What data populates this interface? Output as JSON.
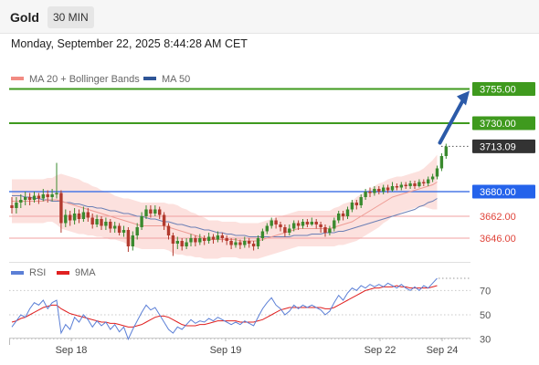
{
  "header": {
    "title": "Gold",
    "timeframe": "30 MIN"
  },
  "timestamp": "Monday, September 22, 2025 8:44:28 AM CET",
  "chart_data": [
    {
      "type": "line",
      "title": "",
      "legend": [
        {
          "name": "MA 20 + Bollinger Bands",
          "color": "#f28b82"
        },
        {
          "name": "MA 50",
          "color": "#2f5597"
        }
      ],
      "legend_placement": "top-left",
      "y_range": [
        3620,
        3770
      ],
      "x_tick_labels": [
        "Sep 18",
        "Sep 19",
        "Sep 22",
        "Sep 24"
      ],
      "candles": {
        "up_color": "#3a8a2e",
        "down_color": "#b23a2e",
        "values": [
          [
            3670,
            3668,
            3676,
            3664
          ],
          [
            3668,
            3672,
            3676,
            3664
          ],
          [
            3672,
            3674,
            3678,
            3668
          ],
          [
            3674,
            3676,
            3680,
            3670
          ],
          [
            3676,
            3674,
            3679,
            3670
          ],
          [
            3674,
            3677,
            3680,
            3672
          ],
          [
            3677,
            3675,
            3679,
            3671
          ],
          [
            3675,
            3678,
            3682,
            3673
          ],
          [
            3678,
            3676,
            3681,
            3672
          ],
          [
            3676,
            3678,
            3682,
            3673
          ],
          [
            3678,
            3679,
            3701,
            3675
          ],
          [
            3679,
            3657,
            3681,
            3650
          ],
          [
            3657,
            3663,
            3667,
            3654
          ],
          [
            3663,
            3659,
            3666,
            3655
          ],
          [
            3659,
            3664,
            3668,
            3656
          ],
          [
            3664,
            3660,
            3667,
            3657
          ],
          [
            3660,
            3665,
            3669,
            3658
          ],
          [
            3665,
            3661,
            3668,
            3658
          ],
          [
            3661,
            3656,
            3664,
            3653
          ],
          [
            3656,
            3660,
            3663,
            3654
          ],
          [
            3660,
            3655,
            3662,
            3652
          ],
          [
            3655,
            3658,
            3661,
            3652
          ],
          [
            3658,
            3653,
            3660,
            3650
          ],
          [
            3653,
            3655,
            3658,
            3650
          ],
          [
            3655,
            3650,
            3657,
            3648
          ],
          [
            3650,
            3652,
            3655,
            3647
          ],
          [
            3652,
            3640,
            3654,
            3636
          ],
          [
            3640,
            3648,
            3651,
            3637
          ],
          [
            3648,
            3654,
            3657,
            3645
          ],
          [
            3654,
            3662,
            3665,
            3652
          ],
          [
            3662,
            3667,
            3670,
            3660
          ],
          [
            3667,
            3664,
            3670,
            3661
          ],
          [
            3664,
            3667,
            3670,
            3662
          ],
          [
            3667,
            3663,
            3669,
            3660
          ],
          [
            3663,
            3655,
            3665,
            3652
          ],
          [
            3655,
            3648,
            3657,
            3645
          ],
          [
            3648,
            3642,
            3650,
            3633
          ],
          [
            3642,
            3644,
            3647,
            3638
          ],
          [
            3644,
            3640,
            3646,
            3637
          ],
          [
            3640,
            3643,
            3646,
            3638
          ],
          [
            3643,
            3646,
            3649,
            3640
          ],
          [
            3646,
            3643,
            3648,
            3640
          ],
          [
            3643,
            3646,
            3649,
            3641
          ],
          [
            3646,
            3644,
            3648,
            3641
          ],
          [
            3644,
            3647,
            3650,
            3642
          ],
          [
            3647,
            3645,
            3649,
            3642
          ],
          [
            3645,
            3648,
            3651,
            3643
          ],
          [
            3648,
            3646,
            3650,
            3643
          ],
          [
            3646,
            3644,
            3648,
            3641
          ],
          [
            3644,
            3641,
            3646,
            3638
          ],
          [
            3641,
            3643,
            3646,
            3639
          ],
          [
            3643,
            3641,
            3645,
            3638
          ],
          [
            3641,
            3644,
            3647,
            3639
          ],
          [
            3644,
            3642,
            3646,
            3639
          ],
          [
            3642,
            3640,
            3644,
            3637
          ],
          [
            3640,
            3646,
            3648,
            3638
          ],
          [
            3646,
            3651,
            3653,
            3644
          ],
          [
            3651,
            3655,
            3657,
            3649
          ],
          [
            3655,
            3659,
            3661,
            3653
          ],
          [
            3659,
            3656,
            3661,
            3653
          ],
          [
            3656,
            3654,
            3658,
            3651
          ],
          [
            3654,
            3650,
            3656,
            3647
          ],
          [
            3650,
            3653,
            3656,
            3648
          ],
          [
            3653,
            3657,
            3659,
            3651
          ],
          [
            3657,
            3655,
            3659,
            3652
          ],
          [
            3655,
            3658,
            3660,
            3653
          ],
          [
            3658,
            3656,
            3660,
            3654
          ],
          [
            3656,
            3658,
            3661,
            3655
          ],
          [
            3658,
            3656,
            3660,
            3653
          ],
          [
            3656,
            3654,
            3658,
            3650
          ],
          [
            3654,
            3650,
            3656,
            3647
          ],
          [
            3650,
            3653,
            3655,
            3648
          ],
          [
            3653,
            3659,
            3661,
            3651
          ],
          [
            3659,
            3664,
            3666,
            3657
          ],
          [
            3664,
            3662,
            3666,
            3659
          ],
          [
            3662,
            3667,
            3669,
            3660
          ],
          [
            3667,
            3672,
            3674,
            3665
          ],
          [
            3672,
            3670,
            3674,
            3667
          ],
          [
            3670,
            3676,
            3678,
            3668
          ],
          [
            3676,
            3680,
            3682,
            3674
          ],
          [
            3680,
            3679,
            3683,
            3676
          ],
          [
            3679,
            3682,
            3684,
            3677
          ],
          [
            3682,
            3680,
            3684,
            3678
          ],
          [
            3680,
            3683,
            3685,
            3678
          ],
          [
            3683,
            3681,
            3685,
            3679
          ],
          [
            3681,
            3684,
            3687,
            3680
          ],
          [
            3684,
            3683,
            3686,
            3681
          ],
          [
            3683,
            3685,
            3687,
            3681
          ],
          [
            3685,
            3684,
            3687,
            3682
          ],
          [
            3684,
            3686,
            3688,
            3682
          ],
          [
            3686,
            3684,
            3688,
            3682
          ],
          [
            3684,
            3687,
            3689,
            3683
          ],
          [
            3687,
            3686,
            3689,
            3684
          ],
          [
            3686,
            3689,
            3691,
            3684
          ],
          [
            3689,
            3691,
            3693,
            3687
          ],
          [
            3691,
            3697,
            3699,
            3689
          ],
          [
            3697,
            3706,
            3708,
            3695
          ],
          [
            3706,
            3713,
            3715,
            3704
          ]
        ]
      },
      "ma20": [
        3673,
        3673,
        3673,
        3673,
        3673,
        3673,
        3673,
        3673,
        3674,
        3674,
        3674,
        3673,
        3672,
        3671,
        3670,
        3669,
        3668,
        3667,
        3666,
        3665,
        3664,
        3663,
        3662,
        3661,
        3660,
        3659,
        3658,
        3657,
        3656,
        3655,
        3655,
        3655,
        3655,
        3655,
        3655,
        3654,
        3653,
        3652,
        3651,
        3650,
        3649,
        3648,
        3647,
        3646,
        3645,
        3645,
        3645,
        3645,
        3645,
        3645,
        3645,
        3644,
        3644,
        3644,
        3644,
        3644,
        3645,
        3646,
        3647,
        3648,
        3649,
        3650,
        3651,
        3652,
        3653,
        3653,
        3653,
        3653,
        3653,
        3653,
        3653,
        3653,
        3654,
        3655,
        3656,
        3657,
        3658,
        3660,
        3662,
        3664,
        3666,
        3668,
        3670,
        3672,
        3674,
        3676,
        3677,
        3678,
        3679,
        3680,
        3681,
        3682,
        3683,
        3684,
        3685,
        3687
      ],
      "bollinger_width": [
        16,
        16,
        16,
        16,
        16,
        16,
        16,
        16,
        16,
        16,
        18,
        20,
        20,
        20,
        20,
        20,
        19,
        19,
        18,
        18,
        17,
        17,
        17,
        16,
        16,
        16,
        17,
        17,
        17,
        17,
        17,
        17,
        17,
        17,
        17,
        17,
        18,
        18,
        17,
        17,
        16,
        16,
        15,
        15,
        14,
        14,
        14,
        13,
        13,
        13,
        13,
        13,
        13,
        13,
        13,
        13,
        13,
        13,
        13,
        13,
        13,
        13,
        13,
        13,
        13,
        13,
        13,
        13,
        13,
        13,
        13,
        13,
        14,
        14,
        15,
        15,
        15,
        16,
        16,
        16,
        16,
        16,
        16,
        15,
        15,
        14,
        14,
        13,
        13,
        13,
        13,
        13,
        14,
        16,
        18,
        20
      ],
      "ma50": [
        3677,
        3677,
        3677,
        3676,
        3676,
        3675,
        3675,
        3674,
        3674,
        3673,
        3673,
        3673,
        3672,
        3672,
        3671,
        3671,
        3670,
        3669,
        3669,
        3668,
        3668,
        3667,
        3666,
        3666,
        3665,
        3664,
        3664,
        3663,
        3662,
        3662,
        3661,
        3660,
        3660,
        3659,
        3658,
        3658,
        3657,
        3656,
        3656,
        3655,
        3654,
        3654,
        3653,
        3652,
        3652,
        3651,
        3650,
        3650,
        3649,
        3649,
        3648,
        3648,
        3648,
        3647,
        3647,
        3647,
        3647,
        3647,
        3647,
        3647,
        3647,
        3647,
        3647,
        3648,
        3648,
        3648,
        3648,
        3649,
        3649,
        3649,
        3650,
        3650,
        3650,
        3651,
        3651,
        3652,
        3653,
        3654,
        3655,
        3656,
        3657,
        3658,
        3659,
        3660,
        3661,
        3662,
        3663,
        3664,
        3665,
        3666,
        3667,
        3669,
        3670,
        3672,
        3673,
        3675
      ],
      "levels": [
        {
          "label": "3755.00",
          "value": 3755.0,
          "kind": "resistance",
          "color": "#3f9a1e"
        },
        {
          "label": "3730.00",
          "value": 3730.0,
          "kind": "resistance",
          "color": "#3f9a1e"
        },
        {
          "label": "3713.09",
          "value": 3713.09,
          "kind": "current",
          "color": "#333333"
        },
        {
          "label": "3680.00",
          "value": 3680.0,
          "kind": "pivot",
          "color": "#2563eb"
        },
        {
          "label": "3662.00",
          "value": 3662.0,
          "kind": "support",
          "color": "#e06666"
        },
        {
          "label": "3646.00",
          "value": 3646.0,
          "kind": "support",
          "color": "#e06666"
        }
      ],
      "arrow": {
        "from": 3713,
        "to": 3755,
        "color": "#2b5aa8"
      }
    },
    {
      "type": "line",
      "legend": [
        {
          "name": "RSI",
          "color": "#5b7fd6"
        },
        {
          "name": "9MA",
          "color": "#e02020"
        }
      ],
      "y_range": [
        20,
        80
      ],
      "y_ticks": [
        "70",
        "50",
        "30"
      ],
      "y_tick_values": [
        70,
        50,
        30
      ],
      "rsi": [
        40,
        45,
        50,
        48,
        55,
        60,
        58,
        62,
        55,
        60,
        62,
        35,
        42,
        38,
        48,
        44,
        50,
        46,
        40,
        45,
        41,
        44,
        38,
        42,
        36,
        40,
        30,
        38,
        45,
        52,
        58,
        54,
        56,
        50,
        44,
        38,
        35,
        40,
        38,
        42,
        46,
        43,
        45,
        44,
        47,
        45,
        48,
        46,
        44,
        42,
        44,
        42,
        45,
        43,
        41,
        48,
        55,
        60,
        64,
        58,
        55,
        50,
        53,
        58,
        55,
        58,
        56,
        58,
        56,
        54,
        50,
        53,
        60,
        66,
        62,
        68,
        72,
        70,
        74,
        72,
        75,
        73,
        75,
        73,
        76,
        74,
        72,
        75,
        72,
        70,
        73,
        70,
        74,
        72,
        76,
        80
      ],
      "ma9": [
        44,
        45,
        47,
        48,
        50,
        52,
        54,
        56,
        57,
        58,
        58,
        55,
        53,
        51,
        50,
        49,
        48,
        47,
        46,
        45,
        44,
        44,
        43,
        43,
        42,
        41,
        40,
        40,
        41,
        42,
        44,
        46,
        48,
        49,
        49,
        48,
        46,
        44,
        42,
        41,
        41,
        41,
        42,
        42,
        43,
        44,
        45,
        45,
        45,
        45,
        45,
        44,
        44,
        44,
        44,
        45,
        46,
        48,
        50,
        52,
        54,
        55,
        56,
        56,
        56,
        56,
        56,
        56,
        56,
        56,
        55,
        55,
        56,
        58,
        60,
        62,
        64,
        66,
        68,
        70,
        71,
        72,
        72,
        73,
        73,
        73,
        74,
        73,
        73,
        72,
        72,
        72,
        72,
        72,
        73,
        74
      ]
    }
  ]
}
